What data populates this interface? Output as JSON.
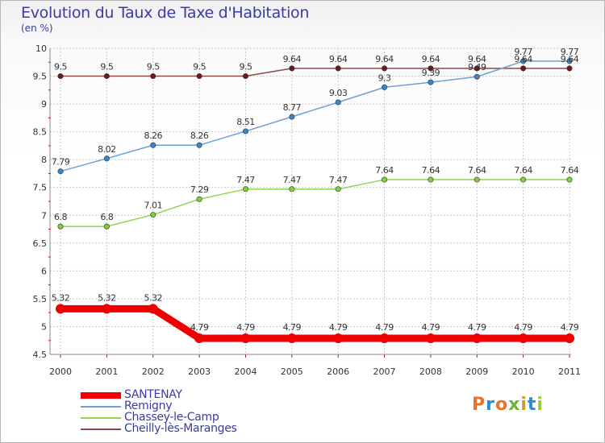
{
  "title": "Evolution du Taux de Taxe d'Habitation",
  "unit": "(en %)",
  "logo": "Proxiti",
  "colors": {
    "title": "#3a3aa8",
    "grid": "#c8c8c8"
  },
  "chart_data": {
    "type": "line",
    "title": "Evolution du Taux de Taxe d'Habitation",
    "ylabel": "(en %)",
    "xlabel": "",
    "ylim": [
      4.5,
      10
    ],
    "yticks": [
      "4.5",
      "5",
      "5.5",
      "6",
      "6.5",
      "7",
      "7.5",
      "8",
      "8.5",
      "9",
      "9.5",
      "10"
    ],
    "x": [
      "2000",
      "2001",
      "2002",
      "2003",
      "2004",
      "2005",
      "2006",
      "2007",
      "2008",
      "2009",
      "2010",
      "2011"
    ],
    "grid": true,
    "legend_position": "bottom-left",
    "series": [
      {
        "name": "SANTENAY",
        "color": "#ee0000",
        "thick": true,
        "values": [
          5.32,
          5.32,
          5.32,
          4.79,
          4.79,
          4.79,
          4.79,
          4.79,
          4.79,
          4.79,
          4.79,
          4.79
        ],
        "labels": [
          "5.32",
          "5.32",
          "5.32",
          "4.79",
          "4.79",
          "4.79",
          "4.79",
          "4.79",
          "4.79",
          "4.79",
          "4.79",
          "4.79"
        ]
      },
      {
        "name": "Remigny",
        "color": "#6aa2d6",
        "dot": "#3a86c8",
        "thick": false,
        "values": [
          7.79,
          8.02,
          8.26,
          8.26,
          8.51,
          8.77,
          9.03,
          9.3,
          9.39,
          9.49,
          9.77,
          9.77
        ],
        "labels": [
          "7.79",
          "8.02",
          "8.26",
          "8.26",
          "8.51",
          "8.77",
          "9.03",
          "9.3",
          "9.39",
          "9.49",
          "9.77",
          "9.77"
        ]
      },
      {
        "name": "Chassey-le-Camp",
        "color": "#8fd456",
        "dot": "#7ed03a",
        "thick": false,
        "values": [
          6.8,
          6.8,
          7.01,
          7.29,
          7.47,
          7.47,
          7.47,
          7.64,
          7.64,
          7.64,
          7.64,
          7.64
        ],
        "labels": [
          "6.8",
          "6.8",
          "7.01",
          "7.29",
          "7.47",
          "7.47",
          "7.47",
          "7.64",
          "7.64",
          "7.64",
          "7.64",
          "7.64"
        ]
      },
      {
        "name": "Cheilly-lès-Maranges",
        "color": "#8b4a4a",
        "dot": "#6a1a1a",
        "thick": false,
        "values": [
          9.5,
          9.5,
          9.5,
          9.5,
          9.5,
          9.64,
          9.64,
          9.64,
          9.64,
          9.64,
          9.64,
          9.64
        ],
        "labels": [
          "9.5",
          "9.5",
          "9.5",
          "9.5",
          "9.5",
          "9.64",
          "9.64",
          "9.64",
          "9.64",
          "9.64",
          "9.64",
          "9.64"
        ]
      }
    ]
  }
}
